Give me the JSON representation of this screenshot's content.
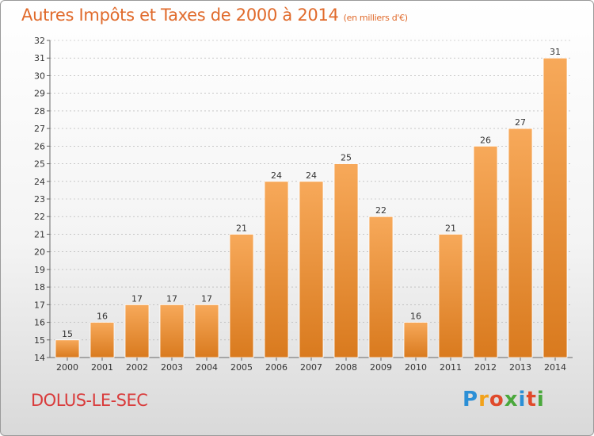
{
  "title": "Autres Impôts et Taxes de 2000 à 2014",
  "unit": "(en milliers d'€)",
  "commune": "DOLUS-LE-SEC",
  "logo": {
    "letters": [
      "P",
      "r",
      "o",
      "x",
      "i",
      "t",
      "i"
    ],
    "colors": [
      "#2b8fd6",
      "#f2a21b",
      "#e04a2b",
      "#4aa83c",
      "#2b8fd6",
      "#e04a2b",
      "#4aa83c"
    ]
  },
  "colors": {
    "bar_top": "#f7a95a",
    "bar_bottom": "#d97a1e",
    "grid": "#aaaaaa"
  },
  "chart_data": {
    "type": "bar",
    "categories": [
      "2000",
      "2001",
      "2002",
      "2003",
      "2004",
      "2005",
      "2006",
      "2007",
      "2008",
      "2009",
      "2010",
      "2011",
      "2012",
      "2013",
      "2014"
    ],
    "values": [
      15,
      16,
      17,
      17,
      17,
      21,
      24,
      24,
      25,
      22,
      16,
      21,
      26,
      27,
      31
    ],
    "data_labels": [
      "15",
      "16",
      "17",
      "17",
      "17",
      "21",
      "24",
      "24",
      "25",
      "22",
      "16",
      "21",
      "26",
      "27",
      "31"
    ],
    "yticks": [
      "14",
      "15",
      "16",
      "17",
      "18",
      "19",
      "20",
      "21",
      "22",
      "23",
      "24",
      "25",
      "26",
      "27",
      "28",
      "29",
      "30",
      "31",
      "32"
    ],
    "ylim": [
      14,
      32
    ],
    "grid": "horizontal dashed"
  }
}
